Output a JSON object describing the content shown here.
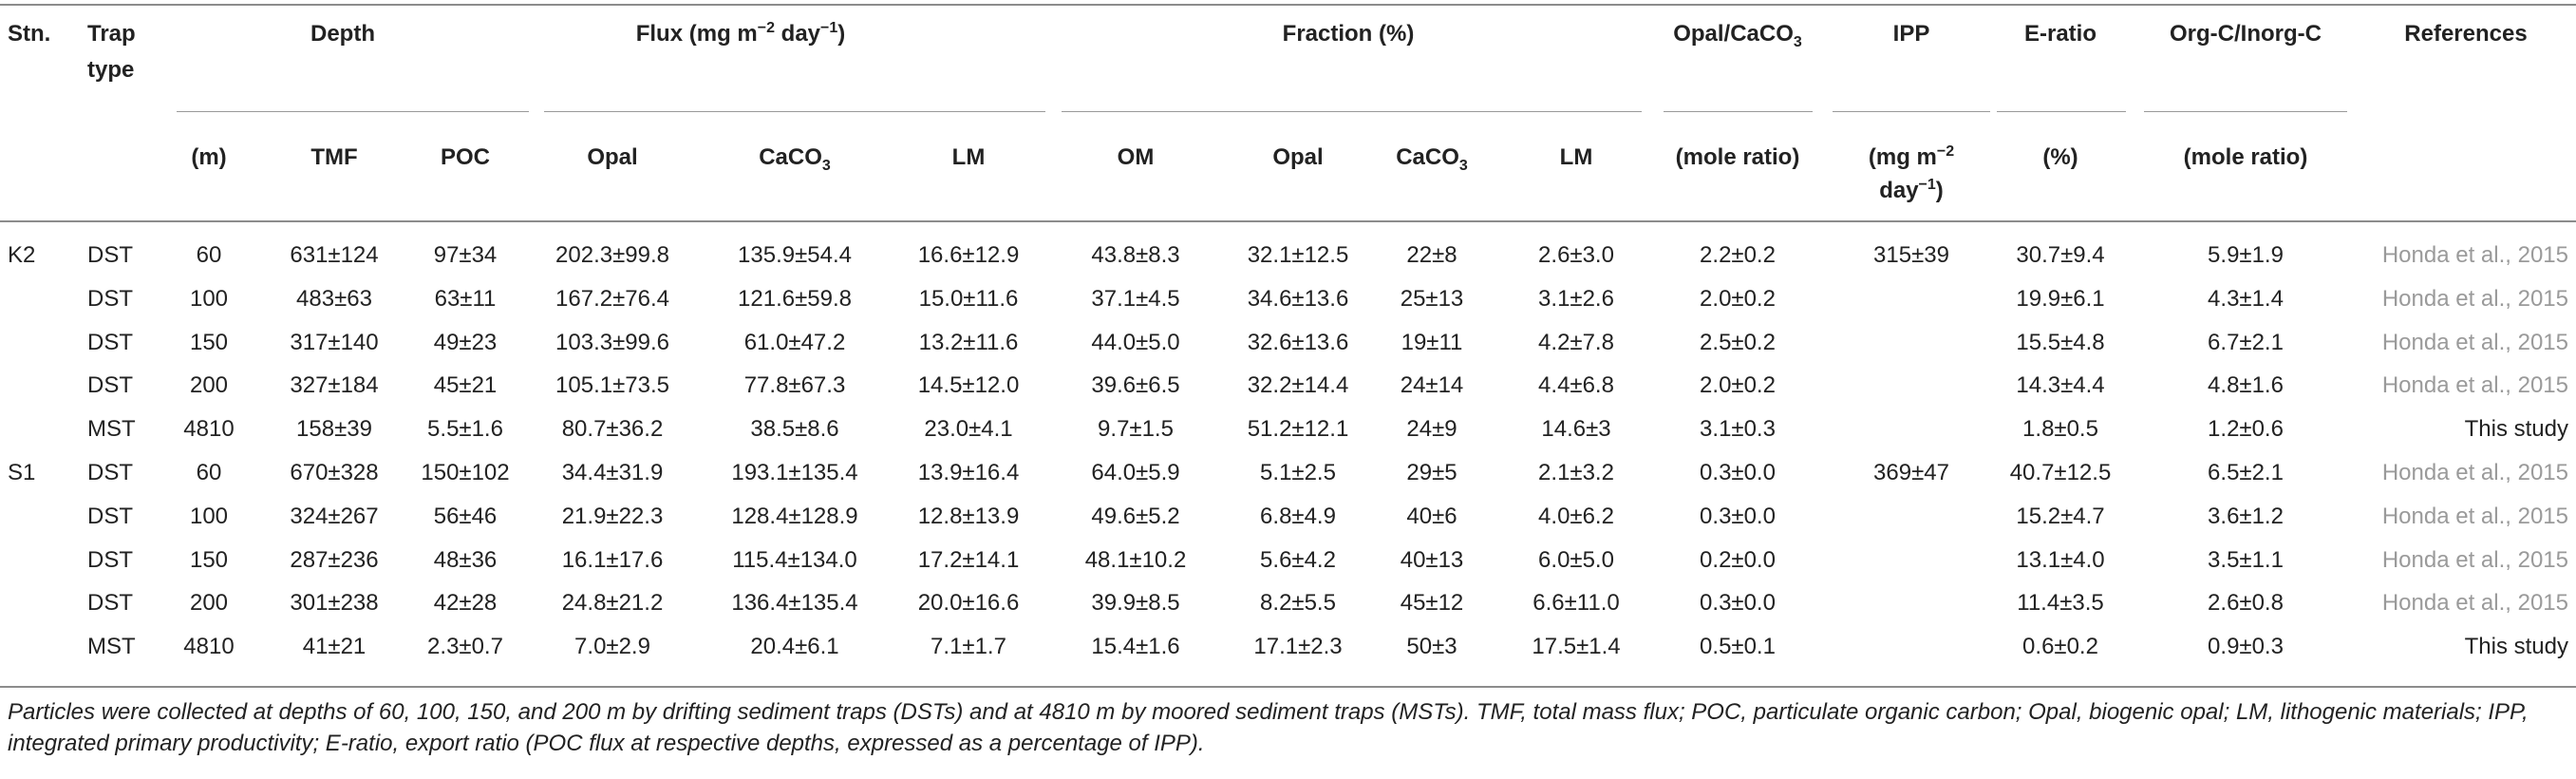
{
  "header": {
    "stn": "Stn.",
    "trap_type_1": "Trap",
    "trap_type_2": "type",
    "depth": "Depth",
    "flux_pre": "Flux (mg m",
    "flux_sup1": "−2",
    "flux_mid": " day",
    "flux_sup2": "−1",
    "flux_post": ")",
    "fraction": "Fraction (%)",
    "opal_caco3_pre": "Opal/CaCO",
    "opal_caco3_sub": "3",
    "ipp": "IPP",
    "eratio": "E-ratio",
    "orgc": "Org-C/Inorg-C",
    "references": "References"
  },
  "subheader": {
    "m": "(m)",
    "tmf": "TMF",
    "poc": "POC",
    "opal": "Opal",
    "caco3_pre": "CaCO",
    "caco3_sub": "3",
    "lm": "LM",
    "om": "OM",
    "opal2": "Opal",
    "caco3b_pre": "CaCO",
    "caco3b_sub": "3",
    "lm2": "LM",
    "mole_ratio": "(mole ratio)",
    "ipp_unit1_pre": "(mg m",
    "ipp_unit1_sup": "−2",
    "ipp_unit2_pre": "day",
    "ipp_unit2_sup": "−1",
    "ipp_unit2_post": ")",
    "pct": "(%)",
    "mole_ratio2": "(mole ratio)"
  },
  "rows": [
    {
      "stn": "K2",
      "trap": "DST",
      "depth": "60",
      "tmf": "631±124",
      "poc": "97±34",
      "opal": "202.3±99.8",
      "caco3": "135.9±54.4",
      "lm": "16.6±12.9",
      "om_f": "43.8±8.3",
      "opal_f": "32.1±12.5",
      "caco3_f": "22±8",
      "lm_f": "2.6±3.0",
      "ratio": "2.2±0.2",
      "ipp": "315±39",
      "eratio": "30.7±9.4",
      "orgc": "5.9±1.9",
      "ref": "Honda et al., 2015",
      "ref_grey": true
    },
    {
      "stn": "",
      "trap": "DST",
      "depth": "100",
      "tmf": "483±63",
      "poc": "63±11",
      "opal": "167.2±76.4",
      "caco3": "121.6±59.8",
      "lm": "15.0±11.6",
      "om_f": "37.1±4.5",
      "opal_f": "34.6±13.6",
      "caco3_f": "25±13",
      "lm_f": "3.1±2.6",
      "ratio": "2.0±0.2",
      "ipp": "",
      "eratio": "19.9±6.1",
      "orgc": "4.3±1.4",
      "ref": "Honda et al., 2015",
      "ref_grey": true
    },
    {
      "stn": "",
      "trap": "DST",
      "depth": "150",
      "tmf": "317±140",
      "poc": "49±23",
      "opal": "103.3±99.6",
      "caco3": "61.0±47.2",
      "lm": "13.2±11.6",
      "om_f": "44.0±5.0",
      "opal_f": "32.6±13.6",
      "caco3_f": "19±11",
      "lm_f": "4.2±7.8",
      "ratio": "2.5±0.2",
      "ipp": "",
      "eratio": "15.5±4.8",
      "orgc": "6.7±2.1",
      "ref": "Honda et al., 2015",
      "ref_grey": true
    },
    {
      "stn": "",
      "trap": "DST",
      "depth": "200",
      "tmf": "327±184",
      "poc": "45±21",
      "opal": "105.1±73.5",
      "caco3": "77.8±67.3",
      "lm": "14.5±12.0",
      "om_f": "39.6±6.5",
      "opal_f": "32.2±14.4",
      "caco3_f": "24±14",
      "lm_f": "4.4±6.8",
      "ratio": "2.0±0.2",
      "ipp": "",
      "eratio": "14.3±4.4",
      "orgc": "4.8±1.6",
      "ref": "Honda et al., 2015",
      "ref_grey": true
    },
    {
      "stn": "",
      "trap": "MST",
      "depth": "4810",
      "tmf": "158±39",
      "poc": "5.5±1.6",
      "opal": "80.7±36.2",
      "caco3": "38.5±8.6",
      "lm": "23.0±4.1",
      "om_f": "9.7±1.5",
      "opal_f": "51.2±12.1",
      "caco3_f": "24±9",
      "lm_f": "14.6±3",
      "ratio": "3.1±0.3",
      "ipp": "",
      "eratio": "1.8±0.5",
      "orgc": "1.2±0.6",
      "ref": "This study",
      "ref_grey": false
    },
    {
      "stn": "S1",
      "trap": "DST",
      "depth": "60",
      "tmf": "670±328",
      "poc": "150±102",
      "opal": "34.4±31.9",
      "caco3": "193.1±135.4",
      "lm": "13.9±16.4",
      "om_f": "64.0±5.9",
      "opal_f": "5.1±2.5",
      "caco3_f": "29±5",
      "lm_f": "2.1±3.2",
      "ratio": "0.3±0.0",
      "ipp": "369±47",
      "eratio": "40.7±12.5",
      "orgc": "6.5±2.1",
      "ref": "Honda et al., 2015",
      "ref_grey": true
    },
    {
      "stn": "",
      "trap": "DST",
      "depth": "100",
      "tmf": "324±267",
      "poc": "56±46",
      "opal": "21.9±22.3",
      "caco3": "128.4±128.9",
      "lm": "12.8±13.9",
      "om_f": "49.6±5.2",
      "opal_f": "6.8±4.9",
      "caco3_f": "40±6",
      "lm_f": "4.0±6.2",
      "ratio": "0.3±0.0",
      "ipp": "",
      "eratio": "15.2±4.7",
      "orgc": "3.6±1.2",
      "ref": "Honda et al., 2015",
      "ref_grey": true
    },
    {
      "stn": "",
      "trap": "DST",
      "depth": "150",
      "tmf": "287±236",
      "poc": "48±36",
      "opal": "16.1±17.6",
      "caco3": "115.4±134.0",
      "lm": "17.2±14.1",
      "om_f": "48.1±10.2",
      "opal_f": "5.6±4.2",
      "caco3_f": "40±13",
      "lm_f": "6.0±5.0",
      "ratio": "0.2±0.0",
      "ipp": "",
      "eratio": "13.1±4.0",
      "orgc": "3.5±1.1",
      "ref": "Honda et al., 2015",
      "ref_grey": true
    },
    {
      "stn": "",
      "trap": "DST",
      "depth": "200",
      "tmf": "301±238",
      "poc": "42±28",
      "opal": "24.8±21.2",
      "caco3": "136.4±135.4",
      "lm": "20.0±16.6",
      "om_f": "39.9±8.5",
      "opal_f": "8.2±5.5",
      "caco3_f": "45±12",
      "lm_f": "6.6±11.0",
      "ratio": "0.3±0.0",
      "ipp": "",
      "eratio": "11.4±3.5",
      "orgc": "2.6±0.8",
      "ref": "Honda et al., 2015",
      "ref_grey": true
    },
    {
      "stn": "",
      "trap": "MST",
      "depth": "4810",
      "tmf": "41±21",
      "poc": "2.3±0.7",
      "opal": "7.0±2.9",
      "caco3": "20.4±6.1",
      "lm": "7.1±1.7",
      "om_f": "15.4±1.6",
      "opal_f": "17.1±2.3",
      "caco3_f": "50±3",
      "lm_f": "17.5±1.4",
      "ratio": "0.5±0.1",
      "ipp": "",
      "eratio": "0.6±0.2",
      "orgc": "0.9±0.3",
      "ref": "This study",
      "ref_grey": false
    }
  ],
  "footnote": "Particles were collected at depths of 60, 100, 150, and 200 m by drifting sediment traps (DSTs) and at 4810 m by moored sediment traps (MSTs). TMF, total mass flux; POC, particulate organic carbon; Opal, biogenic opal; LM, lithogenic materials; IPP, integrated primary productivity; E-ratio, export ratio (POC flux at respective depths, expressed as a percentage of IPP).",
  "colors": {
    "text": "#222222",
    "reference_grey": "#9a9a9a",
    "rule": "#8c8c8c"
  }
}
